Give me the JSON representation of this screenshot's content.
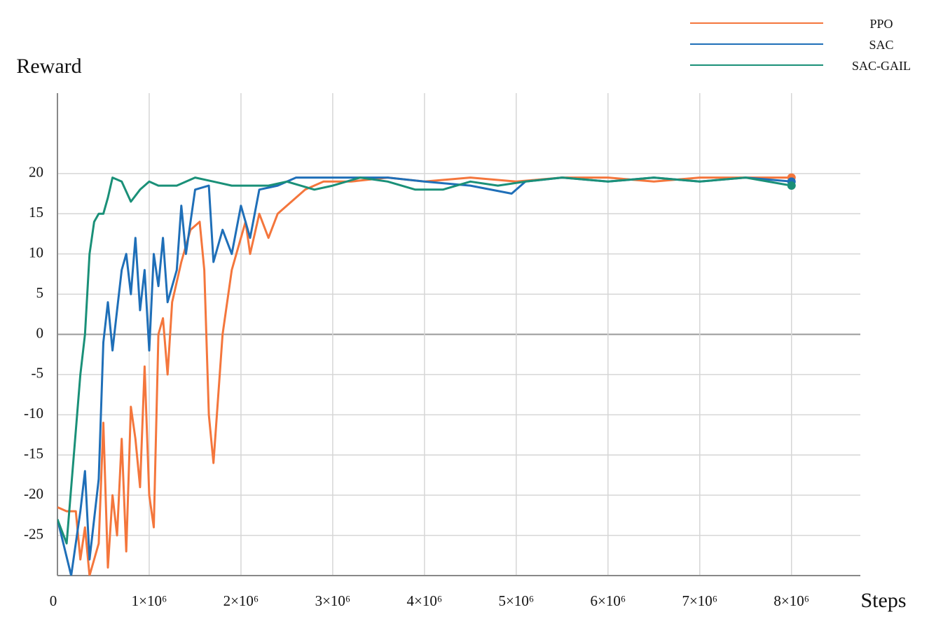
{
  "chart_data": {
    "type": "line",
    "ylabel": "Reward",
    "xlabel": "Steps",
    "xlim": [
      0,
      8750000
    ],
    "ylim": [
      -30,
      30
    ],
    "xticks": [
      0,
      {
        "value": 1000000,
        "label": "1×10⁶"
      },
      {
        "value": 2000000,
        "label": "2×10⁶"
      },
      {
        "value": 3000000,
        "label": "3×10⁶"
      },
      {
        "value": 4000000,
        "label": "4×10⁶"
      },
      {
        "value": 5000000,
        "label": "5×10⁶"
      },
      {
        "value": 6000000,
        "label": "6×10⁶"
      },
      {
        "value": 7000000,
        "label": "7×10⁶"
      },
      {
        "value": 8000000,
        "label": "8×10⁶"
      }
    ],
    "yticks": [
      -25,
      -20,
      -15,
      -10,
      -5,
      0,
      5,
      10,
      15,
      20
    ],
    "grid": true,
    "legend": "top-right",
    "series": [
      {
        "name": "PPO",
        "color": "#f4763c",
        "x": [
          0,
          100000,
          200000,
          250000,
          300000,
          350000,
          450000,
          500000,
          550000,
          600000,
          650000,
          700000,
          750000,
          800000,
          850000,
          900000,
          950000,
          1000000,
          1050000,
          1100000,
          1150000,
          1200000,
          1250000,
          1350000,
          1450000,
          1550000,
          1600000,
          1650000,
          1700000,
          1800000,
          1900000,
          2000000,
          2050000,
          2100000,
          2200000,
          2300000,
          2400000,
          2500000,
          2600000,
          2700000,
          2900000,
          3200000,
          3600000,
          4000000,
          4500000,
          5000000,
          5500000,
          6000000,
          6500000,
          7000000,
          7500000,
          8000000
        ],
        "values": [
          -21.5,
          -22,
          -22,
          -28,
          -24,
          -30,
          -26,
          -11,
          -29,
          -20,
          -25,
          -13,
          -27,
          -9,
          -13,
          -19,
          -4,
          -20,
          -24,
          0,
          2,
          -5,
          4,
          9,
          13,
          14,
          8,
          -10,
          -16,
          0,
          8,
          12,
          14,
          10,
          15,
          12,
          15,
          16,
          17,
          18,
          19,
          19,
          19.5,
          19,
          19.5,
          19,
          19.5,
          19.5,
          19,
          19.5,
          19.5,
          19.5
        ]
      },
      {
        "name": "SAC",
        "color": "#1f6fb8",
        "x": [
          0,
          150000,
          250000,
          300000,
          350000,
          450000,
          500000,
          550000,
          600000,
          650000,
          700000,
          750000,
          800000,
          850000,
          900000,
          950000,
          1000000,
          1050000,
          1100000,
          1150000,
          1200000,
          1300000,
          1350000,
          1400000,
          1500000,
          1650000,
          1700000,
          1800000,
          1900000,
          2000000,
          2100000,
          2200000,
          2400000,
          2600000,
          2800000,
          3200000,
          3600000,
          4000000,
          4500000,
          4950000,
          5100000,
          5500000,
          6000000,
          6500000,
          7000000,
          7500000,
          8000000
        ],
        "values": [
          -23,
          -30,
          -22,
          -17,
          -28,
          -18,
          -1,
          4,
          -2,
          3,
          8,
          10,
          5,
          12,
          3,
          8,
          -2,
          10,
          6,
          12,
          4,
          8,
          16,
          10,
          18,
          18.5,
          9,
          13,
          10,
          16,
          12,
          18,
          18.5,
          19.5,
          19.5,
          19.5,
          19.5,
          19,
          18.5,
          17.5,
          19,
          19.5,
          19,
          19.5,
          19,
          19.5,
          19
        ]
      },
      {
        "name": "SAC-GAIL",
        "color": "#1a9078",
        "x": [
          0,
          100000,
          200000,
          250000,
          300000,
          350000,
          400000,
          450000,
          500000,
          550000,
          600000,
          700000,
          800000,
          900000,
          1000000,
          1100000,
          1300000,
          1500000,
          1700000,
          1900000,
          2100000,
          2300000,
          2500000,
          2800000,
          3000000,
          3300000,
          3600000,
          3900000,
          4200000,
          4500000,
          4800000,
          5100000,
          5500000,
          6000000,
          6500000,
          7000000,
          7500000,
          8000000
        ],
        "values": [
          -23,
          -26,
          -12,
          -5,
          0,
          10,
          14,
          15,
          15,
          17,
          19.5,
          19,
          16.5,
          18,
          19,
          18.5,
          18.5,
          19.5,
          19,
          18.5,
          18.5,
          18.5,
          19,
          18,
          18.5,
          19.5,
          19,
          18,
          18,
          19,
          18.5,
          19,
          19.5,
          19,
          19.5,
          19,
          19.5,
          18.5
        ]
      }
    ]
  }
}
